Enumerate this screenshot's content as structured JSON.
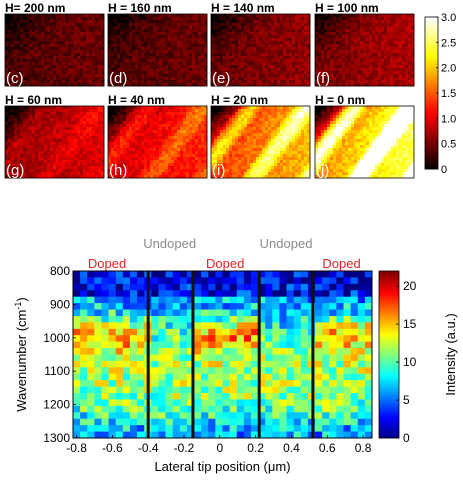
{
  "chart_data": [
    {
      "type": "heatmap",
      "title": "",
      "panels": [
        {
          "id": "c",
          "label": "(c)",
          "title": "H= 200 nm",
          "mean_level": 0.45
        },
        {
          "id": "d",
          "label": "(d)",
          "title": "H = 160 nm",
          "mean_level": 0.45
        },
        {
          "id": "e",
          "label": "(e)",
          "title": "H = 140 nm",
          "mean_level": 0.6
        },
        {
          "id": "f",
          "label": "(f)",
          "title": "H = 100 nm",
          "mean_level": 0.7
        },
        {
          "id": "g",
          "label": "(g)",
          "title": "H = 60 nm",
          "mean_level": 0.9
        },
        {
          "id": "h",
          "label": "(h)",
          "title": "H = 40 nm",
          "mean_level": 1.2
        },
        {
          "id": "i",
          "label": "(i)",
          "title": "H = 20 nm",
          "mean_level": 1.8
        },
        {
          "id": "j",
          "label": "(j)",
          "title": "H = 0 nm",
          "mean_level": 2.3
        }
      ],
      "colorbar": {
        "colormap": "hot",
        "range": [
          0,
          3.0
        ],
        "ticks": [
          "3.0",
          "2.5",
          "2.0",
          "1.5",
          "1.0",
          "0.5",
          "0"
        ],
        "tick_values": [
          3.0,
          2.5,
          2.0,
          1.5,
          1.0,
          0.5,
          0
        ]
      }
    },
    {
      "type": "heatmap",
      "title": "",
      "xlabel": "Lateral tip position (μm)",
      "ylabel_main": "Wavenumber (cm",
      "ylabel_sup": "-1",
      "ylabel_tail": ")",
      "xlim": [
        -0.82,
        0.85
      ],
      "ylim": [
        800,
        1300
      ],
      "y_inverted": true,
      "x_ticks": [
        "-0.8",
        "-0.6",
        "-0.4",
        "-0.2",
        "0",
        "0.2",
        "0.4",
        "0.6",
        "0.8"
      ],
      "x_tick_values": [
        -0.8,
        -0.6,
        -0.4,
        -0.2,
        0,
        0.2,
        0.4,
        0.6,
        0.8
      ],
      "y_ticks": [
        "800",
        "900",
        "1000",
        "1100",
        "1200",
        "1300"
      ],
      "y_tick_values": [
        800,
        900,
        1000,
        1100,
        1200,
        1300
      ],
      "boundaries": [
        -0.4,
        -0.15,
        0.22,
        0.52
      ],
      "regions": [
        {
          "label": "Doped",
          "x": -0.63,
          "color": "#e8202a",
          "row": "low"
        },
        {
          "label": "Undoped",
          "x": -0.28,
          "color": "#8a8a8a",
          "row": "high"
        },
        {
          "label": "Doped",
          "x": 0.03,
          "color": "#e8202a",
          "row": "low"
        },
        {
          "label": "Undoped",
          "x": 0.37,
          "color": "#8a8a8a",
          "row": "high"
        },
        {
          "label": "Doped",
          "x": 0.68,
          "color": "#e8202a",
          "row": "low"
        }
      ],
      "colorbar": {
        "colormap": "jet",
        "label": "Intensity (a.u.)",
        "range": [
          0,
          22
        ],
        "ticks": [
          "20",
          "15",
          "10",
          "5",
          "0"
        ],
        "tick_values": [
          20,
          15,
          10,
          5,
          0
        ]
      }
    }
  ]
}
